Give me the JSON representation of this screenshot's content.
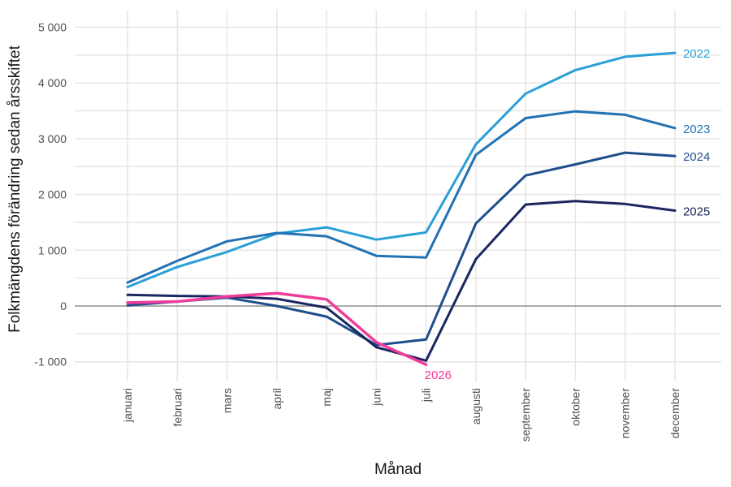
{
  "chart_data": {
    "type": "line",
    "xlabel": "Månad",
    "ylabel": "Folkmängdens förändring sedan årsskiftet",
    "categories": [
      "januari",
      "februari",
      "mars",
      "april",
      "maj",
      "juni",
      "juli",
      "augusti",
      "september",
      "oktober",
      "november",
      "december"
    ],
    "ylim": [
      -1150,
      5050
    ],
    "yticks": [
      -1000,
      0,
      1000,
      2000,
      3000,
      4000,
      5000
    ],
    "ytick_labels": [
      "-1 000",
      "0",
      "1 000",
      "2 000",
      "3 000",
      "4 000",
      "5 000"
    ],
    "grid": true,
    "legend": "direct-labels",
    "series": [
      {
        "name": "2022",
        "color": "#2a9fd6",
        "width": 3,
        "values": [
          340,
          700,
          970,
          1300,
          1410,
          1190,
          1320,
          2900,
          3810,
          4230,
          4470,
          4540
        ]
      },
      {
        "name": "2023",
        "color": "#2272b4",
        "width": 3,
        "values": [
          420,
          810,
          1160,
          1310,
          1250,
          900,
          870,
          2710,
          3370,
          3490,
          3430,
          3190
        ]
      },
      {
        "name": "2024",
        "color": "#1f4e8c",
        "width": 3,
        "values": [
          10,
          80,
          150,
          0,
          -190,
          -700,
          -600,
          1480,
          2340,
          2540,
          2750,
          2690
        ]
      },
      {
        "name": "2025",
        "color": "#1b2560",
        "width": 3,
        "values": [
          200,
          180,
          170,
          130,
          -30,
          -740,
          -980,
          840,
          1820,
          1880,
          1830,
          1710
        ]
      },
      {
        "name": "2026",
        "color": "#f03c9a",
        "width": 3.5,
        "values": [
          60,
          80,
          170,
          230,
          120,
          -650,
          -1050,
          null,
          null,
          null,
          null,
          null
        ]
      }
    ]
  }
}
